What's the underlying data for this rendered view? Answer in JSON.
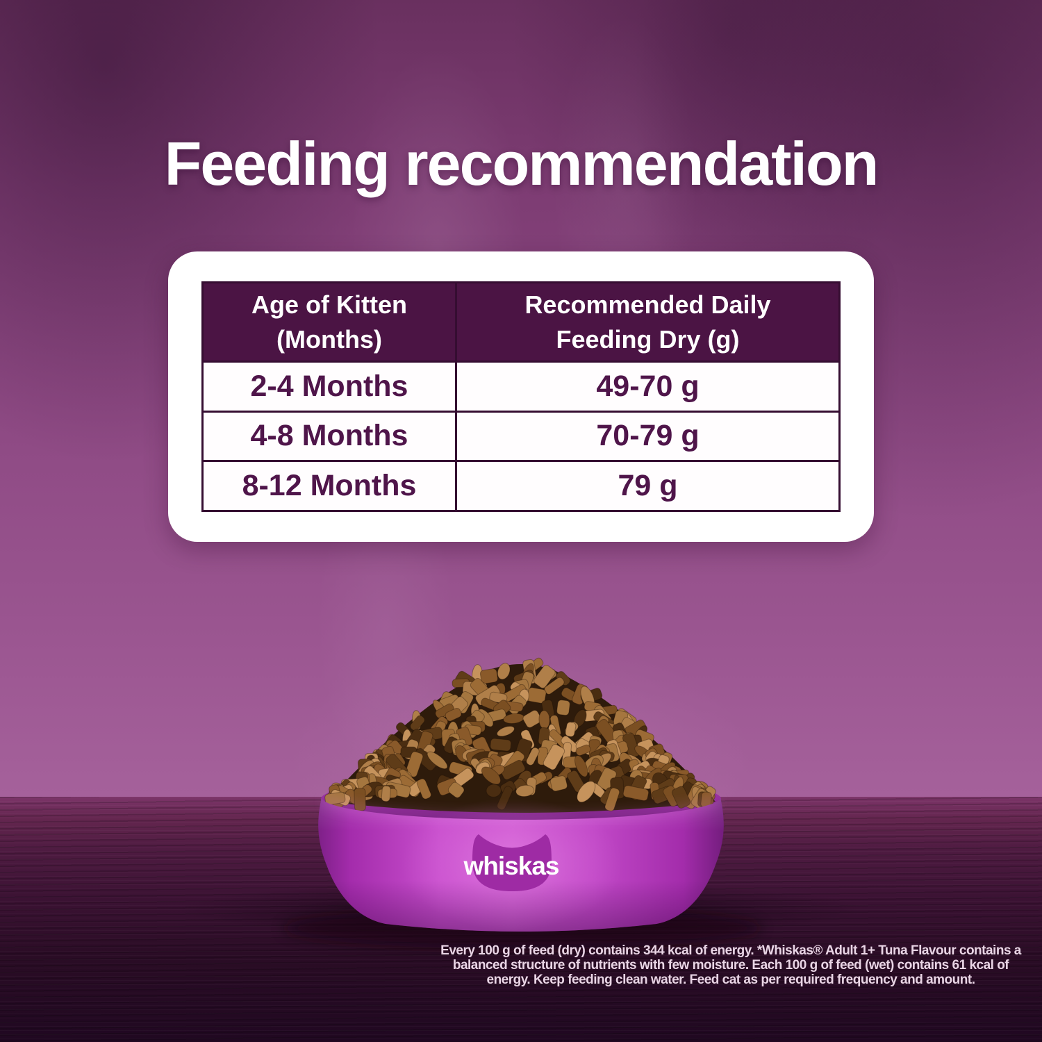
{
  "title": "Feeding recommendation",
  "table": {
    "col1_header_line1": "Age of Kitten",
    "col1_header_line2": "(Months)",
    "col2_header_line1": "Recommended Daily",
    "col2_header_line2": "Feeding Dry (g)",
    "rows": [
      {
        "age": "2-4 Months",
        "amount": "49-70 g"
      },
      {
        "age": "4-8 Months",
        "amount": "70-79 g"
      },
      {
        "age": "8-12 Months",
        "amount": "79 g"
      }
    ]
  },
  "bowl": {
    "brand_wordmark": "whiskas"
  },
  "footnote": {
    "lines": [
      "Every 100 g of feed (dry) contains 344 kcal of energy. *Whiskas® Adult 1+ Tuna Flavour contains a",
      "balanced structure of nutrients with few moisture. Each 100 g of feed (wet) contains 61 kcal of",
      "energy. Keep feeding clean water. Feed cat as per required frequency and amount."
    ]
  },
  "colors": {
    "background_purple": "#94538b",
    "title_text": "#ffffff",
    "card_bg": "#ffffff",
    "table_header_bg": "#4b1444",
    "table_border": "#350d31",
    "table_header_text": "#ffffff",
    "table_body_text": "#4f154a",
    "bowl_magenta": "#bc3ec4",
    "bowl_edge_dark": "#7e2088",
    "badge_magenta": "#9e2ba4",
    "floor_dark": "#2a0d26",
    "footnote_text": "#e9d5e5",
    "kibble_palette": [
      "#9c6b35",
      "#7b4f22",
      "#b07f49",
      "#5f3c18",
      "#8a5a2a",
      "#c6935c",
      "#4a2d11",
      "#a5763f"
    ]
  }
}
